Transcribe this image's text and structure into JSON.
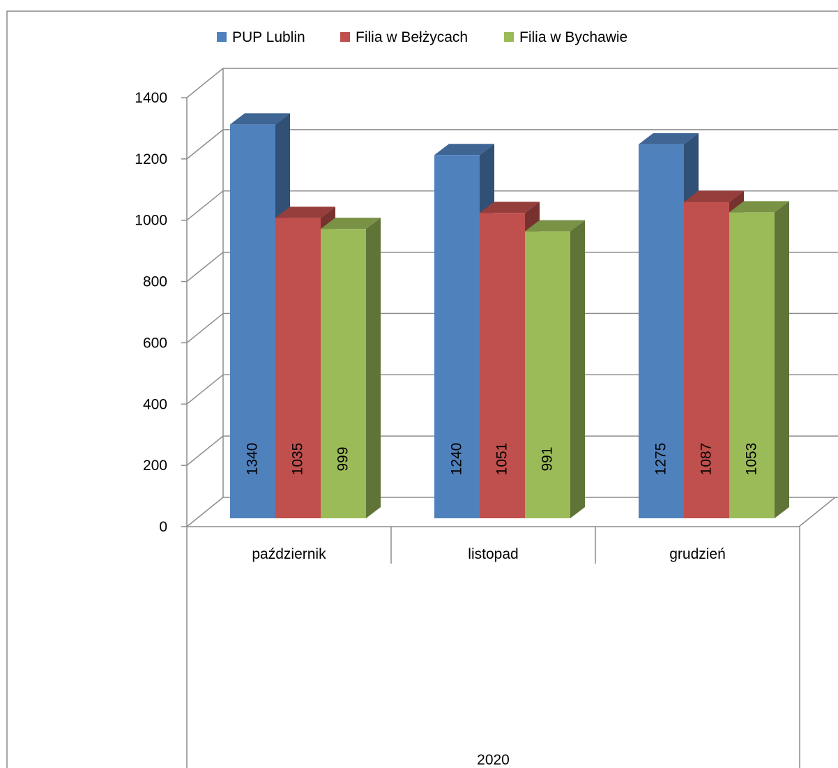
{
  "chart_data": {
    "type": "bar",
    "categories": [
      "październik",
      "listopad",
      "grudzień"
    ],
    "group_label": "2020",
    "series": [
      {
        "name": "PUP Lublin",
        "values": [
          1340,
          1240,
          1275
        ],
        "color": "#4f81bd"
      },
      {
        "name": "Filia w Bełżycach",
        "values": [
          1035,
          1051,
          1087
        ],
        "color": "#c0504d"
      },
      {
        "name": "Filia w Bychawie",
        "values": [
          999,
          991,
          1053
        ],
        "color": "#9bbb59"
      }
    ],
    "ylim": [
      0,
      1400
    ],
    "yticks": [
      0,
      200,
      400,
      600,
      800,
      1000,
      1200,
      1400
    ],
    "grid": true,
    "legend_position": "top",
    "style": "3d-clustered-column"
  }
}
